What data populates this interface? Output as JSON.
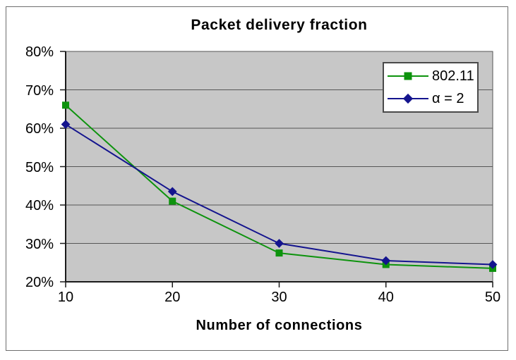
{
  "figure": {
    "background": "#ffffff",
    "border_color": "#6e6e6e"
  },
  "chart_data": {
    "type": "line",
    "title": "Packet delivery fraction",
    "xlabel": "Number of connections",
    "ylabel": "",
    "x": [
      10,
      20,
      30,
      40,
      50
    ],
    "series": [
      {
        "name": "802.11",
        "color": "#0d930d",
        "marker": "square",
        "values": [
          66,
          41,
          27.5,
          24.5,
          23.5
        ]
      },
      {
        "name": "α = 2",
        "color": "#14148e",
        "marker": "diamond",
        "values": [
          61,
          43.5,
          30,
          25.5,
          24.5
        ]
      }
    ],
    "xlim": [
      10,
      50
    ],
    "ylim": [
      20,
      80
    ],
    "xticks": [
      10,
      20,
      30,
      40,
      50
    ],
    "yticks": [
      20,
      30,
      40,
      50,
      60,
      70,
      80
    ],
    "xtick_labels": [
      "10",
      "20",
      "30",
      "40",
      "50"
    ],
    "ytick_labels": [
      "20%",
      "30%",
      "40%",
      "50%",
      "60%",
      "70%",
      "80%"
    ],
    "grid": "horizontal",
    "legend_position": "top-right",
    "plot_bg": "#c7c7c7",
    "grid_color": "#565656",
    "axis_color": "#1a1a1a"
  }
}
